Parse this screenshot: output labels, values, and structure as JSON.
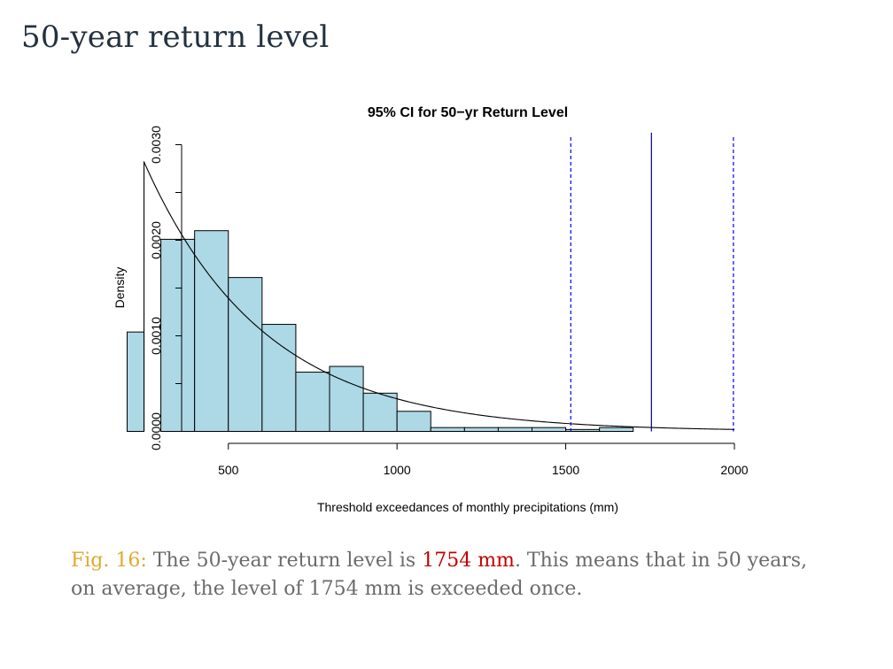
{
  "slide": {
    "title": "50-year return level"
  },
  "caption": {
    "fig_label": "Fig. 16:",
    "text_before": " The 50-year return level is ",
    "highlight": "1754 mm",
    "text_after": ". This means that in 50 years, on average, the level of 1754 mm is exceeded once."
  },
  "colors": {
    "bar_fill": "#add8e6",
    "ci_line": "#0000ff",
    "return_level_line": "#00008b",
    "title": "#233140",
    "fig_label": "#e0a92d",
    "highlight": "#c40000",
    "caption_text": "#6b6b6b"
  },
  "chart_data": {
    "type": "bar",
    "title": "95% CI for 50−yr Return Level",
    "xlabel": "Threshold exceedances of monthly precipitations (mm)",
    "ylabel": "Density",
    "xlim": [
      200,
      2000
    ],
    "ylim": [
      0,
      0.003
    ],
    "x_ticks": [
      500,
      1000,
      1500,
      2000
    ],
    "x_tick_labels": [
      "500",
      "1000",
      "1500",
      "2000"
    ],
    "y_ticks": [
      0,
      0.0005,
      0.001,
      0.0015,
      0.002,
      0.0025,
      0.003
    ],
    "y_tick_labels": [
      "0.0000",
      "",
      "0.0010",
      "",
      "0.0020",
      "",
      "0.0030"
    ],
    "grid": false,
    "histogram_bins": [
      {
        "x0": 200,
        "x1": 250,
        "density": 0.00104
      },
      {
        "x0": 250,
        "x1": 300,
        "density": 0.0
      },
      {
        "x0": 300,
        "x1": 400,
        "density": 0.00201
      },
      {
        "x0": 400,
        "x1": 500,
        "density": 0.0021
      },
      {
        "x0": 500,
        "x1": 600,
        "density": 0.00161
      },
      {
        "x0": 600,
        "x1": 700,
        "density": 0.00112
      },
      {
        "x0": 700,
        "x1": 800,
        "density": 0.00062
      },
      {
        "x0": 800,
        "x1": 900,
        "density": 0.00068
      },
      {
        "x0": 900,
        "x1": 1000,
        "density": 0.0004
      },
      {
        "x0": 1000,
        "x1": 1100,
        "density": 0.00021
      },
      {
        "x0": 1100,
        "x1": 1200,
        "density": 4e-05
      },
      {
        "x0": 1200,
        "x1": 1300,
        "density": 4e-05
      },
      {
        "x0": 1300,
        "x1": 1400,
        "density": 4e-05
      },
      {
        "x0": 1400,
        "x1": 1500,
        "density": 4e-05
      },
      {
        "x0": 1500,
        "x1": 1600,
        "density": 2e-05
      },
      {
        "x0": 1600,
        "x1": 1700,
        "density": 4e-05
      }
    ],
    "density_curve": {
      "threshold": 250,
      "peak_density": 0.00282,
      "scale": 355,
      "x_end": 2000
    },
    "vertical_lines": [
      {
        "x": 1515,
        "style": "dashed",
        "role": "ci_lower"
      },
      {
        "x": 1754,
        "style": "solid",
        "role": "return_level"
      },
      {
        "x": 1997,
        "style": "dashed",
        "role": "ci_upper"
      }
    ]
  }
}
